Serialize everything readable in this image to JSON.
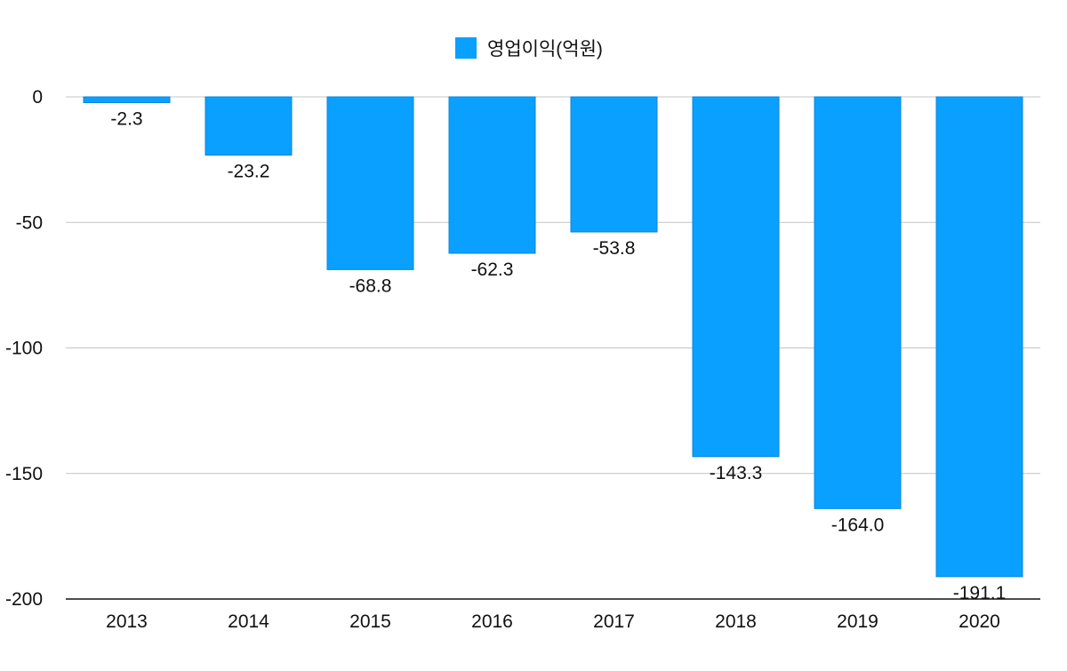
{
  "chart_data": {
    "type": "bar",
    "title": "",
    "xlabel": "",
    "ylabel": "",
    "categories": [
      "2013",
      "2014",
      "2015",
      "2016",
      "2017",
      "2018",
      "2019",
      "2020"
    ],
    "series": [
      {
        "name": "영업이익(억원)",
        "values": [
          -2.3,
          -23.2,
          -68.8,
          -62.3,
          -53.8,
          -143.3,
          -164.0,
          -191.1
        ]
      }
    ],
    "data_labels": [
      "-2.3",
      "-23.2",
      "-68.8",
      "-62.3",
      "-53.8",
      "-143.3",
      "-164.0",
      "-191.1"
    ],
    "ylim": [
      -200,
      0
    ],
    "yticks": [
      0,
      -50,
      -100,
      -150,
      -200
    ],
    "ytick_labels": [
      "0",
      "-50",
      "-100",
      "-150",
      "-200"
    ],
    "grid": true,
    "legend_position": "top-center",
    "bar_color": "#0AA0FF"
  }
}
